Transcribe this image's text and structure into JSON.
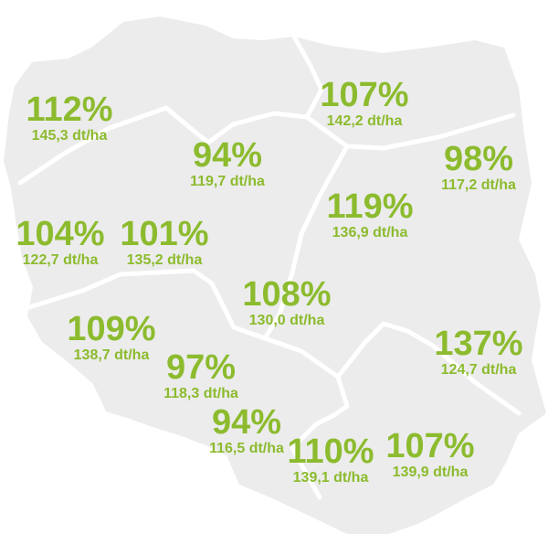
{
  "colors": {
    "land": "#ececec",
    "border": "#ffffff",
    "label": "#8cbb2e"
  },
  "regions": [
    {
      "id": "nw",
      "percent": "112%",
      "yield": "145,3 dt/ha"
    },
    {
      "id": "n",
      "percent": "107%",
      "yield": "142,2 dt/ha"
    },
    {
      "id": "nc",
      "percent": "94%",
      "yield": "119,7 dt/ha"
    },
    {
      "id": "ne",
      "percent": "98%",
      "yield": "117,2 dt/ha"
    },
    {
      "id": "c",
      "percent": "119%",
      "yield": "136,9 dt/ha"
    },
    {
      "id": "w",
      "percent": "104%",
      "yield": "122,7 dt/ha"
    },
    {
      "id": "wc",
      "percent": "101%",
      "yield": "135,2 dt/ha"
    },
    {
      "id": "cc",
      "percent": "108%",
      "yield": "130,0 dt/ha"
    },
    {
      "id": "sw",
      "percent": "109%",
      "yield": "138,7 dt/ha"
    },
    {
      "id": "e",
      "percent": "137%",
      "yield": "124,7 dt/ha"
    },
    {
      "id": "sw2",
      "percent": "97%",
      "yield": "118,3 dt/ha"
    },
    {
      "id": "s1",
      "percent": "94%",
      "yield": "116,5 dt/ha"
    },
    {
      "id": "s2",
      "percent": "110%",
      "yield": "139,1 dt/ha"
    },
    {
      "id": "se",
      "percent": "107%",
      "yield": "139,9 dt/ha"
    }
  ]
}
